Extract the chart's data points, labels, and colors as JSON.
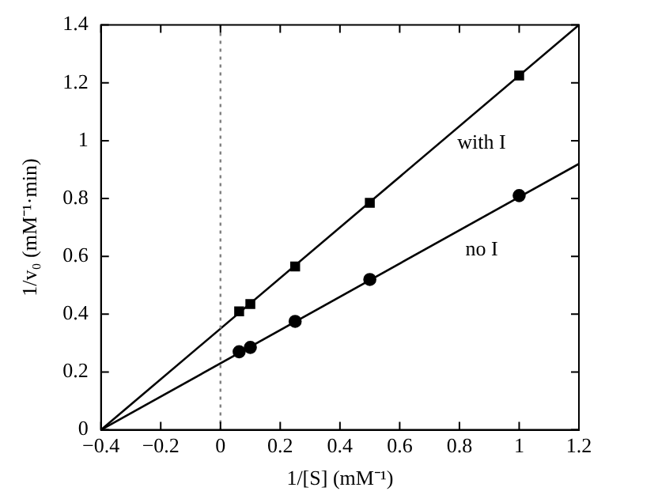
{
  "chart_data": {
    "type": "scatter",
    "xlabel": "1/[S] (mM⁻¹)",
    "ylabel": "1/v₀ (mM⁻¹·min)",
    "xlim": [
      -0.4,
      1.2
    ],
    "xticks": [
      {
        "value": -0.4,
        "label": "−0.4"
      },
      {
        "value": -0.2,
        "label": "−0.2"
      },
      0,
      0.2,
      0.4,
      0.6,
      0.8,
      1,
      1.2
    ],
    "ylim": [
      0,
      1.4
    ],
    "yticks": [
      0,
      0.2,
      0.4,
      0.6,
      0.8,
      1,
      1.2,
      1.4
    ],
    "grid": false,
    "legend": false,
    "series": [
      {
        "marker": "square",
        "color": "#000000",
        "x": [
          0.0625,
          0.1,
          0.25,
          0.5,
          1
        ],
        "values": [
          0.41,
          0.435,
          0.565,
          0.785,
          1.225
        ]
      },
      {
        "marker": "circle",
        "color": "#000000",
        "x": [
          0.0625,
          0.1,
          0.25,
          0.5,
          1
        ],
        "values": [
          0.27,
          0.285,
          0.375,
          0.52,
          0.81
        ]
      },
      {
        "type": "line",
        "name": "with I",
        "marker": "none",
        "color": "#000000",
        "x": [
          -0.4,
          1.2
        ],
        "values": [
          0,
          1.4
        ]
      },
      {
        "type": "line",
        "name": "no I",
        "marker": "none",
        "color": "#000000",
        "x": [
          -0.4,
          1.2
        ],
        "values": [
          0,
          0.92
        ]
      }
    ],
    "ref_lines": [
      {
        "axis": "x",
        "value": 0,
        "color": "#808080",
        "line_style": "dotted"
      }
    ]
  }
}
